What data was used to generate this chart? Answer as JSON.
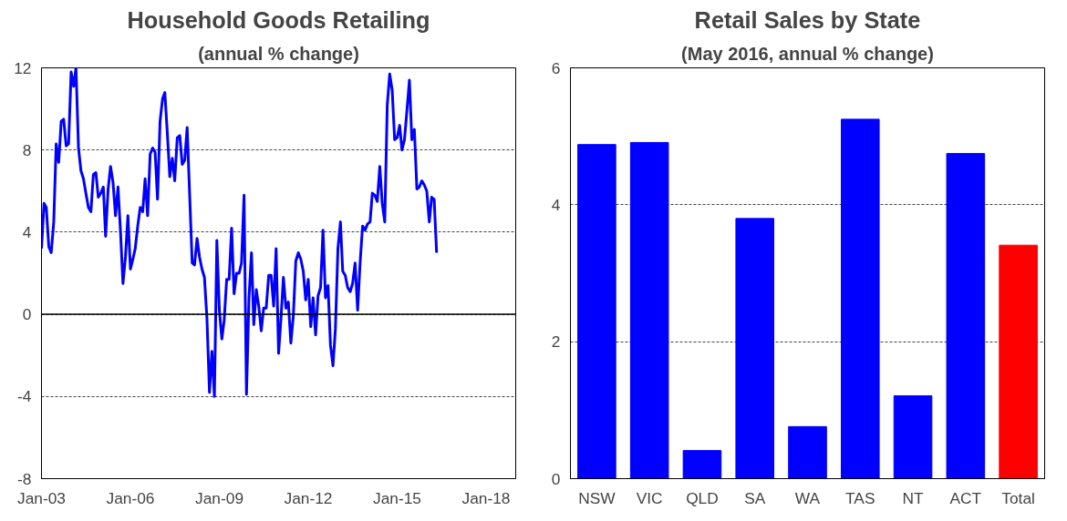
{
  "chart_data": [
    {
      "type": "line",
      "title": "Household Goods Retailing",
      "subtitle": "(annual % change)",
      "x": [
        "2003-01",
        "2003-02",
        "2003-03",
        "2003-04",
        "2003-05",
        "2003-06",
        "2003-07",
        "2003-08",
        "2003-09",
        "2003-10",
        "2003-11",
        "2003-12",
        "2004-01",
        "2004-02",
        "2004-03",
        "2004-04",
        "2004-05",
        "2004-06",
        "2004-07",
        "2004-08",
        "2004-09",
        "2004-10",
        "2004-11",
        "2004-12",
        "2005-01",
        "2005-02",
        "2005-03",
        "2005-04",
        "2005-05",
        "2005-06",
        "2005-07",
        "2005-08",
        "2005-09",
        "2005-10",
        "2005-11",
        "2005-12",
        "2006-01",
        "2006-02",
        "2006-03",
        "2006-04",
        "2006-05",
        "2006-06",
        "2006-07",
        "2006-08",
        "2006-09",
        "2006-10",
        "2006-11",
        "2006-12",
        "2007-01",
        "2007-02",
        "2007-03",
        "2007-04",
        "2007-05",
        "2007-06",
        "2007-07",
        "2007-08",
        "2007-09",
        "2007-10",
        "2007-11",
        "2007-12",
        "2008-01",
        "2008-02",
        "2008-03",
        "2008-04",
        "2008-05",
        "2008-06",
        "2008-07",
        "2008-08",
        "2008-09",
        "2008-10",
        "2008-11",
        "2008-12",
        "2009-01",
        "2009-02",
        "2009-03",
        "2009-04",
        "2009-05",
        "2009-06",
        "2009-07",
        "2009-08",
        "2009-09",
        "2009-10",
        "2009-11",
        "2009-12",
        "2010-01",
        "2010-02",
        "2010-03",
        "2010-04",
        "2010-05",
        "2010-06",
        "2010-07",
        "2010-08",
        "2010-09",
        "2010-10",
        "2010-11",
        "2010-12",
        "2011-01",
        "2011-02",
        "2011-03",
        "2011-04",
        "2011-05",
        "2011-06",
        "2011-07",
        "2011-08",
        "2011-09",
        "2011-10",
        "2011-11",
        "2011-12",
        "2012-01",
        "2012-02",
        "2012-03",
        "2012-04",
        "2012-05",
        "2012-06",
        "2012-07",
        "2012-08",
        "2012-09",
        "2012-10",
        "2012-11",
        "2012-12",
        "2013-01",
        "2013-02",
        "2013-03",
        "2013-04",
        "2013-05",
        "2013-06",
        "2013-07",
        "2013-08",
        "2013-09",
        "2013-10",
        "2013-11",
        "2013-12",
        "2014-01",
        "2014-02",
        "2014-03",
        "2014-04",
        "2014-05",
        "2014-06",
        "2014-07",
        "2014-08",
        "2014-09",
        "2014-10",
        "2014-11",
        "2014-12",
        "2015-01",
        "2015-02",
        "2015-03",
        "2015-04",
        "2015-05",
        "2015-06",
        "2015-07",
        "2015-08",
        "2015-09",
        "2015-10",
        "2015-11",
        "2015-12",
        "2016-01",
        "2016-02",
        "2016-03",
        "2016-04",
        "2016-05"
      ],
      "values": [
        3.2,
        5.4,
        5.2,
        3.3,
        3.0,
        4.5,
        8.3,
        7.4,
        9.4,
        9.5,
        8.2,
        8.3,
        11.8,
        11.1,
        12.0,
        8.1,
        7.0,
        6.6,
        5.9,
        5.2,
        5.0,
        6.8,
        6.9,
        5.7,
        5.9,
        6.2,
        3.8,
        6.1,
        7.2,
        6.4,
        4.8,
        6.2,
        4.0,
        1.5,
        2.8,
        4.8,
        2.2,
        2.7,
        3.2,
        4.3,
        5.2,
        5.0,
        6.6,
        4.8,
        7.8,
        8.1,
        7.9,
        5.6,
        9.4,
        10.5,
        10.8,
        8.8,
        6.7,
        7.6,
        6.5,
        8.6,
        8.7,
        7.3,
        7.5,
        9.1,
        5.8,
        2.5,
        2.4,
        3.7,
        2.8,
        2.2,
        1.8,
        -0.2,
        -3.8,
        -1.8,
        -4.0,
        3.6,
        0.2,
        -1.2,
        -0.3,
        1.7,
        1.7,
        4.2,
        1.0,
        2.0,
        2.0,
        2.5,
        5.8,
        -3.9,
        0.8,
        3.0,
        -0.5,
        1.2,
        0.4,
        -0.8,
        0.3,
        0.3,
        1.9,
        1.9,
        0.4,
        3.2,
        -1.9,
        -0.1,
        1.8,
        0.3,
        0.6,
        -1.4,
        -0.1,
        2.6,
        3.0,
        2.7,
        2.1,
        0.7,
        1.7,
        -0.6,
        0.8,
        -1.0,
        0.9,
        1.3,
        4.1,
        0.8,
        1.4,
        -1.5,
        -2.5,
        -0.7,
        3.2,
        4.5,
        2.1,
        1.9,
        1.3,
        1.1,
        1.5,
        2.5,
        0.2,
        2.5,
        4.3,
        4.1,
        4.4,
        4.5,
        5.9,
        5.8,
        5.5,
        7.2,
        5.4,
        4.5,
        10.2,
        11.7,
        10.9,
        8.5,
        8.6,
        9.2,
        8.0,
        8.5,
        9.9,
        11.4,
        8.5,
        9.0,
        6.1,
        6.2,
        6.5,
        6.3,
        6.0,
        4.5,
        5.7,
        5.6,
        3.0
      ],
      "color": "#0000ff",
      "xlim": [
        "2003-01",
        "2019-01"
      ],
      "xticks": [
        {
          "value": "2003-01",
          "label": "Jan-03"
        },
        {
          "value": "2006-01",
          "label": "Jan-06"
        },
        {
          "value": "2009-01",
          "label": "Jan-09"
        },
        {
          "value": "2012-01",
          "label": "Jan-12"
        },
        {
          "value": "2015-01",
          "label": "Jan-15"
        },
        {
          "value": "2018-01",
          "label": "Jan-18"
        }
      ],
      "ylim": [
        -8,
        12
      ],
      "yticks": [
        -8,
        -4,
        0,
        4,
        8,
        12
      ],
      "grid": "y"
    },
    {
      "type": "bar",
      "title": "Retail Sales by State",
      "subtitle": "(May 2016, annual % change)",
      "categories": [
        "NSW",
        "VIC",
        "QLD",
        "SA",
        "WA",
        "TAS",
        "NT",
        "ACT",
        "Total"
      ],
      "values": [
        4.88,
        4.91,
        0.41,
        3.8,
        0.76,
        5.25,
        1.21,
        4.75,
        3.41
      ],
      "colors": [
        "#0000ff",
        "#0000ff",
        "#0000ff",
        "#0000ff",
        "#0000ff",
        "#0000ff",
        "#0000ff",
        "#0000ff",
        "#ff0000"
      ],
      "ylim": [
        0,
        6
      ],
      "yticks": [
        0,
        2,
        4,
        6
      ],
      "grid": "y"
    }
  ]
}
